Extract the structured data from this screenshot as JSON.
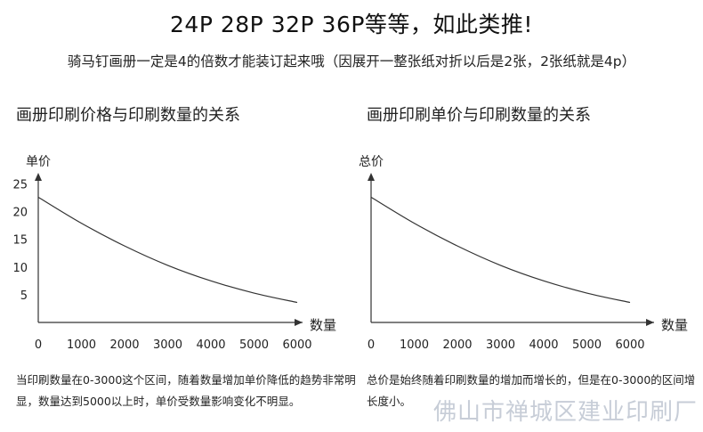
{
  "header": {
    "headline": "24P  28P  32P  36P等等，如此类推!",
    "subline": "骑马钉画册一定是4的倍数才能装订起来哦（因展开一整张纸对折以后是2张，2张纸就是4p）"
  },
  "watermark": "佛山市禅城区建业印刷厂",
  "chart_data": [
    {
      "type": "line",
      "title": "画册印刷价格与印刷数量的关系",
      "xlabel": "数量",
      "ylabel": "单价",
      "x_ticks": [
        "0",
        "1000",
        "2000",
        "3000",
        "4000",
        "5000",
        "6000"
      ],
      "y_ticks": [
        "5",
        "10",
        "15",
        "20",
        "25"
      ],
      "xlim": [
        0,
        6000
      ],
      "ylim": [
        0,
        27
      ],
      "grid": false,
      "x": [
        0,
        1000,
        2000,
        3000,
        4000,
        5000,
        6000
      ],
      "y": [
        22.6,
        17.9,
        13.8,
        10.3,
        7.5,
        5.3,
        3.6
      ],
      "note": "当印刷数量在0-3000这个区间，随着数量增加单价降低的趋势非常明显，数量达到5000以上时，单价受数量影响变化不明显。"
    },
    {
      "type": "line",
      "title": "画册印刷单价与印刷数量的关系",
      "xlabel": "数量",
      "ylabel": "总价",
      "x_ticks": [
        "0",
        "1000",
        "2000",
        "3000",
        "4000",
        "5000",
        "6000"
      ],
      "xlim": [
        0,
        6000
      ],
      "ylim": [
        0,
        27
      ],
      "grid": false,
      "x": [
        0,
        1000,
        2000,
        3000,
        4000,
        5000,
        6000
      ],
      "y": [
        22.6,
        17.9,
        13.8,
        10.3,
        7.5,
        5.3,
        3.6
      ],
      "note": "总价是始终随着印刷数量的增加而增长的，但是在0-3000的区间增长度小。"
    }
  ]
}
